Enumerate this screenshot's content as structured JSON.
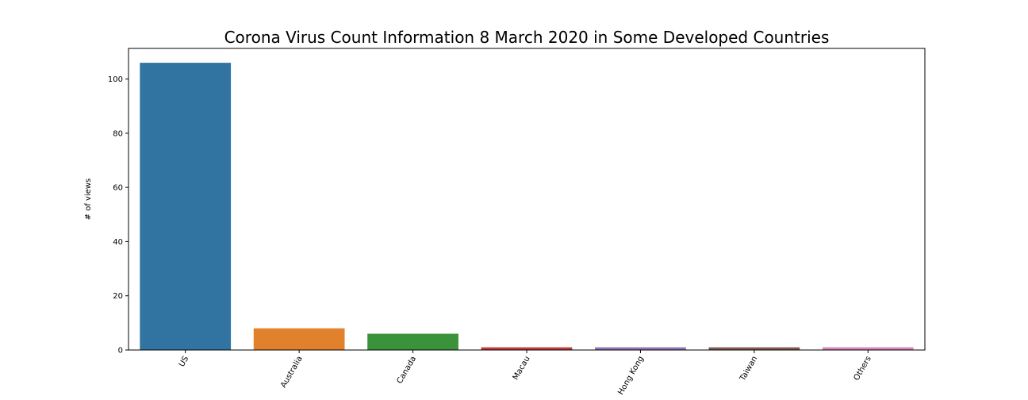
{
  "chart_data": {
    "type": "bar",
    "title": "Corona Virus Count Information 8 March 2020 in Some Developed Countries",
    "xlabel": "",
    "ylabel": "# of views",
    "categories": [
      "US",
      "Australia",
      "Canada",
      "Macau",
      "Hong Kong",
      "Taiwan",
      "Others"
    ],
    "values": [
      106,
      8,
      6,
      1,
      1,
      1,
      1
    ],
    "colors": [
      "#3274a1",
      "#e1812c",
      "#3a923a",
      "#c03d3e",
      "#9372b2",
      "#845b53",
      "#d684bd"
    ],
    "ylim": [
      0,
      111.3
    ],
    "yticks": [
      "0",
      "20",
      "40",
      "60",
      "80",
      "100"
    ],
    "grid": false,
    "legend": "none"
  }
}
